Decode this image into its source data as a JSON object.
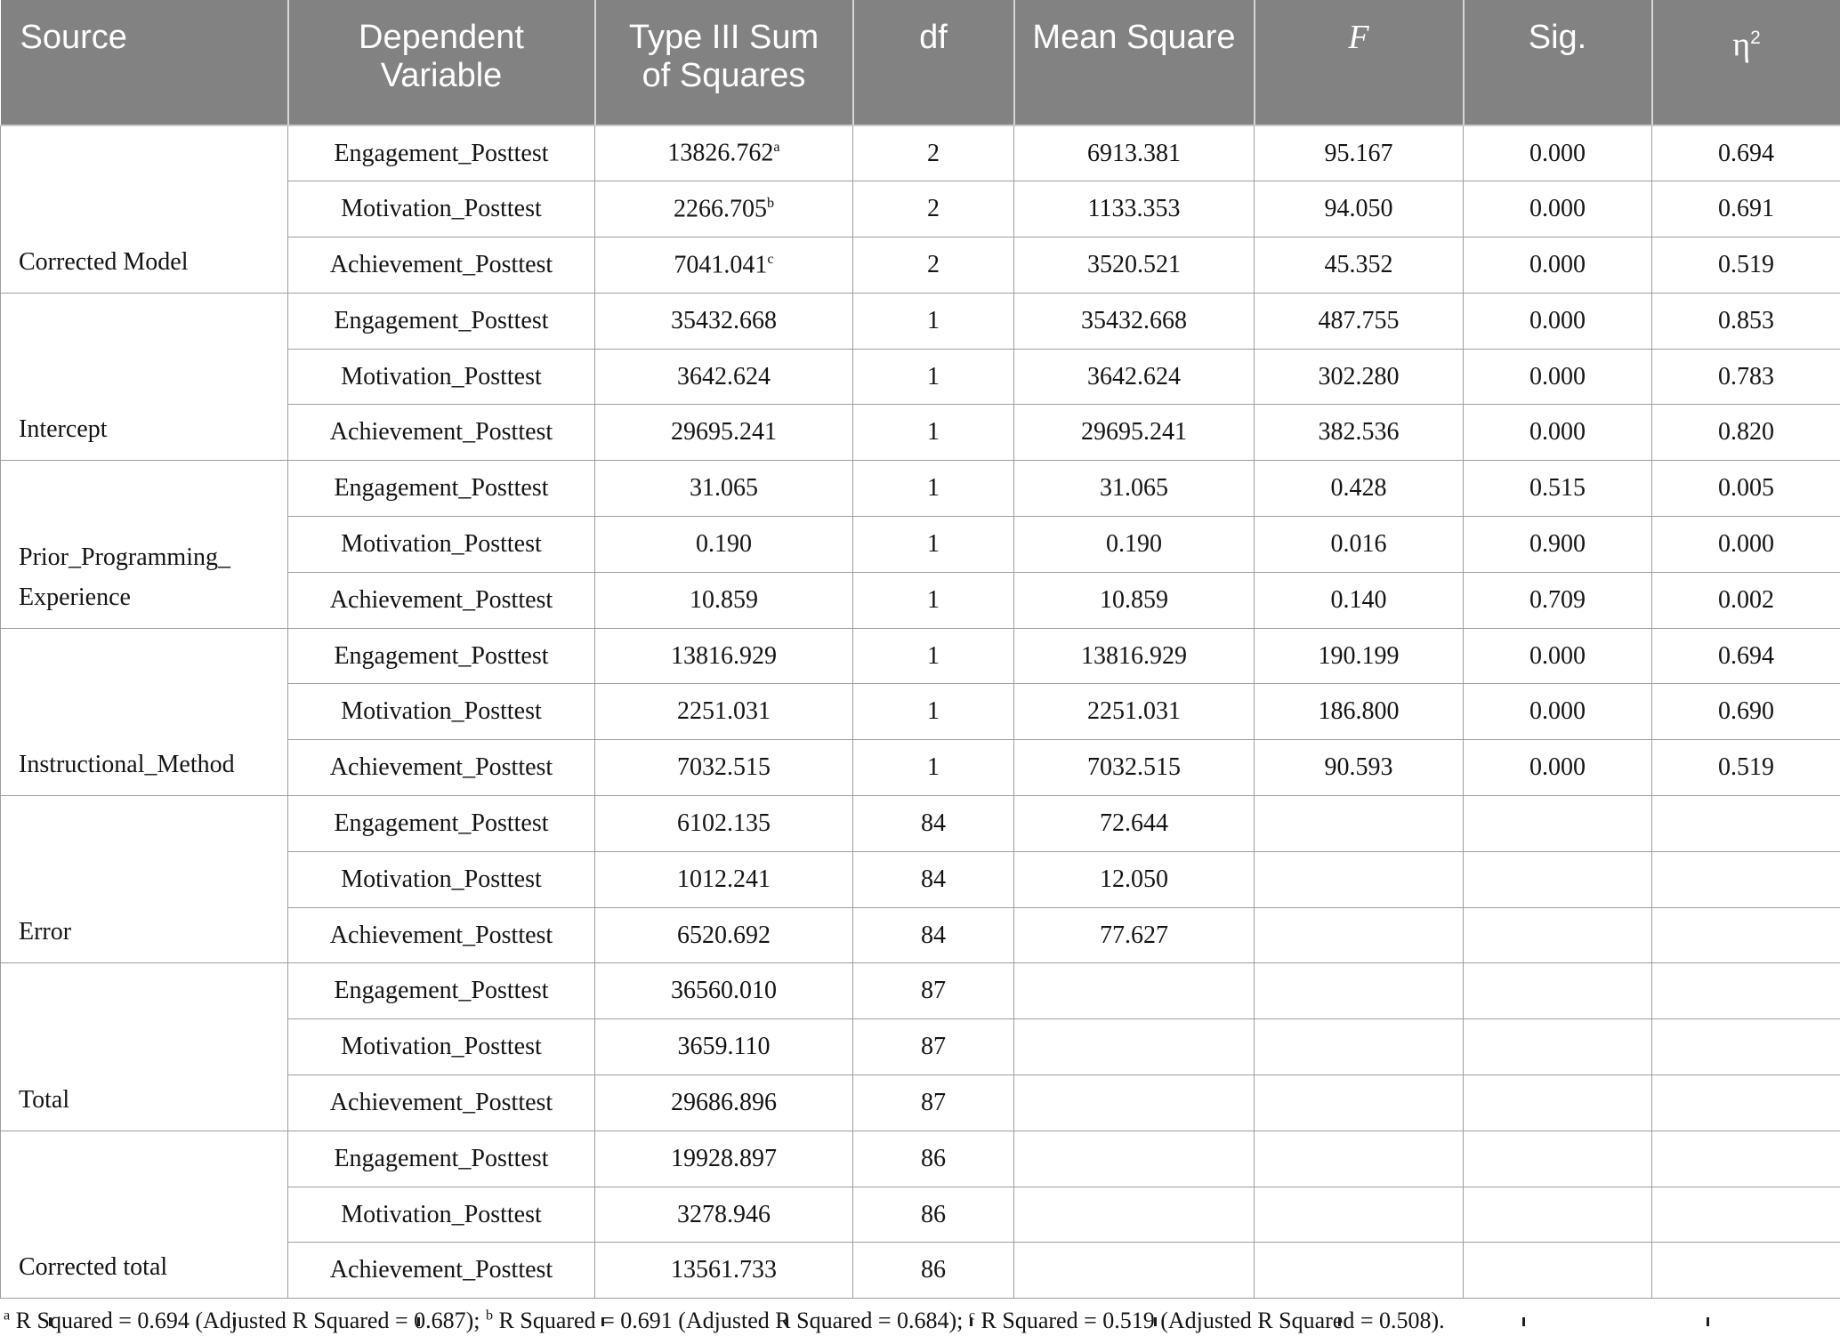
{
  "colors": {
    "header_bg": "#828282",
    "header_text": "#ffffff",
    "grid_line": "#9e9e9e",
    "body_text": "#141414"
  },
  "table": {
    "columns": [
      {
        "id": "source",
        "lines": [
          "Source"
        ]
      },
      {
        "id": "dv",
        "lines": [
          "Dependent",
          "Variable"
        ]
      },
      {
        "id": "ss",
        "lines": [
          "Type III Sum",
          "of Squares"
        ]
      },
      {
        "id": "df",
        "lines": [
          "df"
        ]
      },
      {
        "id": "ms",
        "lines": [
          "Mean Square"
        ]
      },
      {
        "id": "f",
        "lines": [
          "F"
        ],
        "italic": true
      },
      {
        "id": "sig",
        "lines": [
          "Sig."
        ]
      },
      {
        "id": "eta",
        "lines": [
          "η"
        ],
        "sup": "2",
        "serif": true
      }
    ],
    "groups": [
      {
        "source_lines": [
          "Corrected Model"
        ],
        "rows": [
          {
            "dv": "Engagement_Posttest",
            "ss": "13826.762",
            "ss_note": "a",
            "df": "2",
            "ms": "6913.381",
            "f": "95.167",
            "sig": "0.000",
            "eta": "0.694"
          },
          {
            "dv": "Motivation_Posttest",
            "ss": "2266.705",
            "ss_note": "b",
            "df": "2",
            "ms": "1133.353",
            "f": "94.050",
            "sig": "0.000",
            "eta": "0.691"
          },
          {
            "dv": "Achievement_Posttest",
            "ss": "7041.041",
            "ss_note": "c",
            "df": "2",
            "ms": "3520.521",
            "f": "45.352",
            "sig": "0.000",
            "eta": "0.519"
          }
        ]
      },
      {
        "source_lines": [
          "Intercept"
        ],
        "rows": [
          {
            "dv": "Engagement_Posttest",
            "ss": "35432.668",
            "df": "1",
            "ms": "35432.668",
            "f": "487.755",
            "sig": "0.000",
            "eta": "0.853"
          },
          {
            "dv": "Motivation_Posttest",
            "ss": "3642.624",
            "df": "1",
            "ms": "3642.624",
            "f": "302.280",
            "sig": "0.000",
            "eta": "0.783"
          },
          {
            "dv": "Achievement_Posttest",
            "ss": "29695.241",
            "df": "1",
            "ms": "29695.241",
            "f": "382.536",
            "sig": "0.000",
            "eta": "0.820"
          }
        ]
      },
      {
        "source_lines": [
          "Prior_Programming_",
          "Experience"
        ],
        "rows": [
          {
            "dv": "Engagement_Posttest",
            "ss": "31.065",
            "df": "1",
            "ms": "31.065",
            "f": "0.428",
            "sig": "0.515",
            "eta": "0.005"
          },
          {
            "dv": "Motivation_Posttest",
            "ss": "0.190",
            "df": "1",
            "ms": "0.190",
            "f": "0.016",
            "sig": "0.900",
            "eta": "0.000"
          },
          {
            "dv": "Achievement_Posttest",
            "ss": "10.859",
            "df": "1",
            "ms": "10.859",
            "f": "0.140",
            "sig": "0.709",
            "eta": "0.002"
          }
        ]
      },
      {
        "source_lines": [
          "Instructional_Method"
        ],
        "rows": [
          {
            "dv": "Engagement_Posttest",
            "ss": "13816.929",
            "df": "1",
            "ms": "13816.929",
            "f": "190.199",
            "sig": "0.000",
            "eta": "0.694"
          },
          {
            "dv": "Motivation_Posttest",
            "ss": "2251.031",
            "df": "1",
            "ms": "2251.031",
            "f": "186.800",
            "sig": "0.000",
            "eta": "0.690"
          },
          {
            "dv": "Achievement_Posttest",
            "ss": "7032.515",
            "df": "1",
            "ms": "7032.515",
            "f": "90.593",
            "sig": "0.000",
            "eta": "0.519"
          }
        ]
      },
      {
        "source_lines": [
          "Error"
        ],
        "rows": [
          {
            "dv": "Engagement_Posttest",
            "ss": "6102.135",
            "df": "84",
            "ms": "72.644"
          },
          {
            "dv": "Motivation_Posttest",
            "ss": "1012.241",
            "df": "84",
            "ms": "12.050"
          },
          {
            "dv": "Achievement_Posttest",
            "ss": "6520.692",
            "df": "84",
            "ms": "77.627"
          }
        ]
      },
      {
        "source_lines": [
          "Total"
        ],
        "rows": [
          {
            "dv": "Engagement_Posttest",
            "ss": "36560.010",
            "df": "87"
          },
          {
            "dv": "Motivation_Posttest",
            "ss": "3659.110",
            "df": "87"
          },
          {
            "dv": "Achievement_Posttest",
            "ss": "29686.896",
            "df": "87"
          }
        ]
      },
      {
        "source_lines": [
          "Corrected total"
        ],
        "rows": [
          {
            "dv": "Engagement_Posttest",
            "ss": "19928.897",
            "df": "86"
          },
          {
            "dv": "Motivation_Posttest",
            "ss": "3278.946",
            "df": "86"
          },
          {
            "dv": "Achievement_Posttest",
            "ss": "13561.733",
            "df": "86"
          }
        ]
      }
    ]
  },
  "footnotes": [
    {
      "marker": "a",
      "text": " R Squared = 0.694 (Adjusted R Squared = 0.687); "
    },
    {
      "marker": "b",
      "text": " R Squared = 0.691 (Adjusted R Squared = 0.684); "
    },
    {
      "marker": "c",
      "text": " R Squared = 0.519 (Adjusted R Squared = 0.508)."
    }
  ]
}
